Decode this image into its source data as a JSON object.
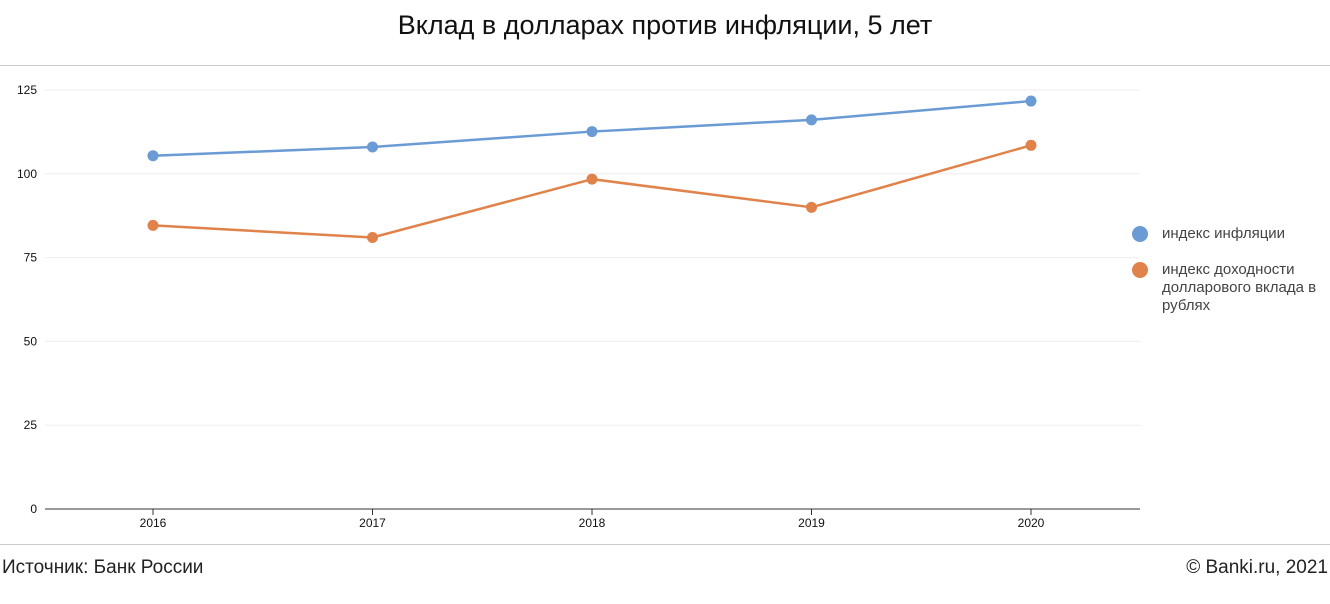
{
  "header": {
    "title": "Вклад в долларах против инфляции, 5 лет"
  },
  "footer": {
    "source": "Источник: Банк России",
    "copyright": "© Banki.ru, 2021"
  },
  "colors": {
    "series1": "#6a9bd4",
    "series2": "#e0824a",
    "grid": "#eeeeee",
    "axis": "#333333"
  },
  "chart_data": {
    "type": "line",
    "title": "Вклад в долларах против инфляции, 5 лет",
    "xlabel": "",
    "ylabel": "",
    "x": [
      "2016",
      "2017",
      "2018",
      "2019",
      "2020"
    ],
    "ylim": [
      0,
      125
    ],
    "yticks": [
      0,
      25,
      50,
      75,
      100,
      125
    ],
    "grid": true,
    "legend_position": "right",
    "series": [
      {
        "name": "индекс инфляции",
        "values": [
          105.4,
          108.0,
          112.6,
          116.1,
          121.7
        ]
      },
      {
        "name": "индекс доходности долларового вклада в рублях",
        "values": [
          84.6,
          81.0,
          98.4,
          90.0,
          108.5
        ]
      }
    ]
  }
}
